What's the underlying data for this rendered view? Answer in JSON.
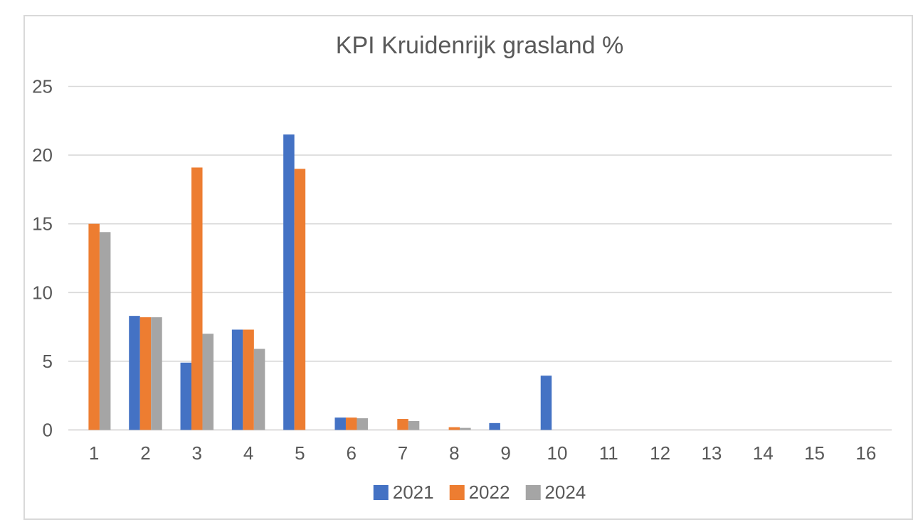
{
  "chart_data": {
    "type": "bar",
    "title": "KPI Kruidenrijk grasland %",
    "xlabel": "",
    "ylabel": "",
    "categories": [
      "1",
      "2",
      "3",
      "4",
      "5",
      "6",
      "7",
      "8",
      "9",
      "10",
      "11",
      "12",
      "13",
      "14",
      "15",
      "16"
    ],
    "series": [
      {
        "name": "2021",
        "color": "#4472C4",
        "values": [
          0,
          8.3,
          4.9,
          7.3,
          21.5,
          0.9,
          0,
          0,
          0.5,
          3.95,
          0,
          0,
          0,
          0,
          0,
          0
        ]
      },
      {
        "name": "2022",
        "color": "#ED7D31",
        "values": [
          15.0,
          8.2,
          19.1,
          7.3,
          19.0,
          0.9,
          0.8,
          0.2,
          0,
          0,
          0,
          0,
          0,
          0,
          0,
          0
        ]
      },
      {
        "name": "2024",
        "color": "#A5A5A5",
        "values": [
          14.4,
          8.2,
          7.0,
          5.9,
          0,
          0.85,
          0.65,
          0.15,
          0,
          0,
          0,
          0,
          0,
          0,
          0,
          0
        ]
      }
    ],
    "ylim": [
      0,
      25
    ],
    "yticks": [
      0,
      5,
      10,
      15,
      20,
      25
    ],
    "grid": true,
    "legend_position": "bottom"
  },
  "colors": {
    "text": "#595959",
    "gridline": "#D9D9D9",
    "axis_line": "#D0CECE",
    "frame_border": "#D9D9D9",
    "background": "#FFFFFF"
  }
}
